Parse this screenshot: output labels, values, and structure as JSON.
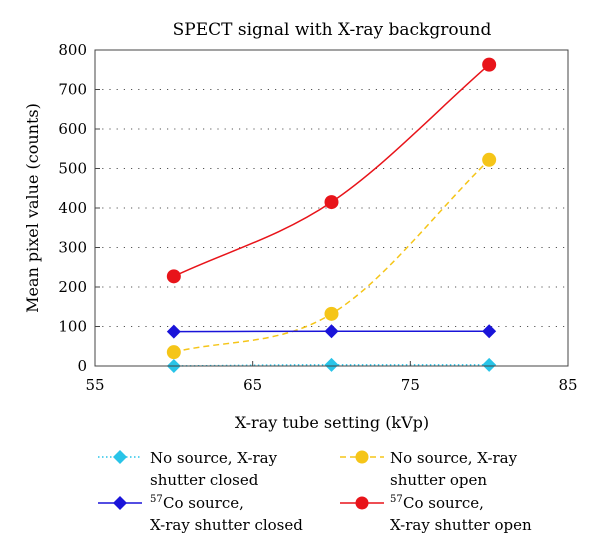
{
  "chart_data": {
    "type": "line",
    "title": "SPECT signal with X-ray background",
    "xlabel": "X-ray tube setting (kVp)",
    "ylabel": "Mean pixel value (counts)",
    "xlim": [
      55,
      85
    ],
    "ylim": [
      0,
      800
    ],
    "xticks": [
      55,
      65,
      75,
      85
    ],
    "yticks": [
      0,
      100,
      200,
      300,
      400,
      500,
      600,
      700,
      800
    ],
    "grid": "horizontal dotted",
    "legend_position": "bottom",
    "series": [
      {
        "key": "no_source_closed",
        "legend_lines": [
          "No source, X-ray",
          "shutter closed"
        ],
        "color": "#29c4e8",
        "marker": "diamond",
        "line_style": "dotted",
        "x": [
          60,
          70,
          80
        ],
        "y": [
          0,
          3,
          3
        ]
      },
      {
        "key": "no_source_open",
        "legend_lines": [
          "No source, X-ray",
          "shutter open"
        ],
        "color": "#f5c518",
        "marker": "circle",
        "line_style": "dashed",
        "x": [
          60,
          70,
          80
        ],
        "y": [
          35,
          132,
          522
        ]
      },
      {
        "key": "co57_closed",
        "legend_lines": [
          "57",
          "Co source,",
          "X-ray shutter closed"
        ],
        "color": "#1a14d9",
        "marker": "diamond",
        "line_style": "solid",
        "x": [
          60,
          70,
          80
        ],
        "y": [
          87,
          88,
          88
        ]
      },
      {
        "key": "co57_open",
        "legend_lines": [
          "57",
          "Co source,",
          "X-ray shutter open"
        ],
        "color": "#e8141a",
        "marker": "circle",
        "line_style": "solid",
        "x": [
          60,
          70,
          80
        ],
        "y": [
          227,
          415,
          763
        ]
      }
    ]
  }
}
